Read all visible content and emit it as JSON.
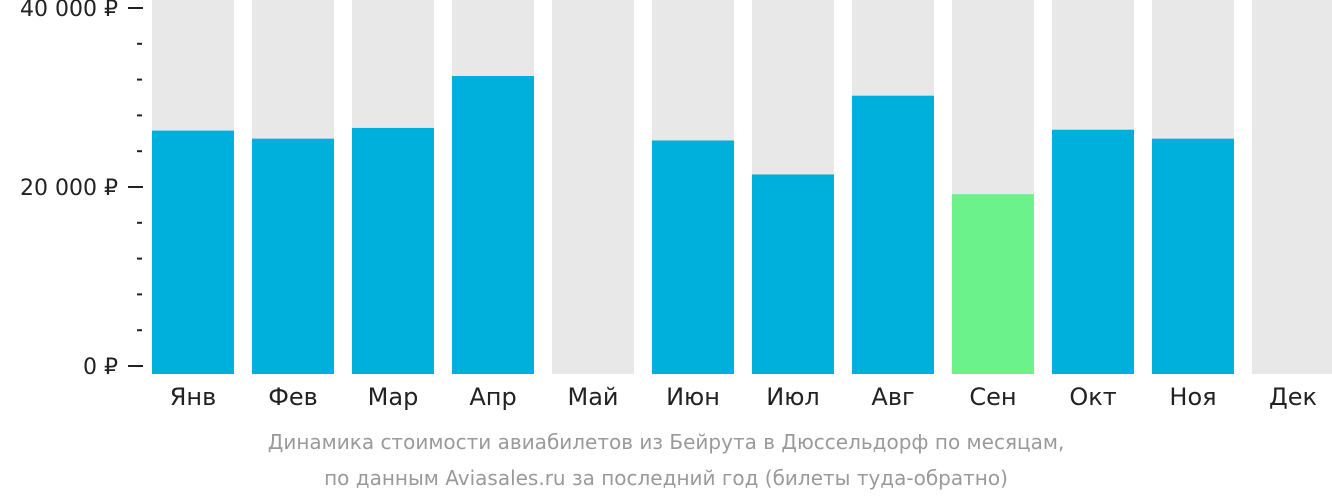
{
  "chart_data": {
    "type": "bar",
    "categories": [
      "Янв",
      "Фев",
      "Мар",
      "Апр",
      "Май",
      "Июн",
      "Июл",
      "Авг",
      "Сен",
      "Окт",
      "Ноя",
      "Дек"
    ],
    "values": [
      26300,
      25400,
      26600,
      32400,
      null,
      25200,
      21400,
      30200,
      19200,
      26400,
      25400,
      null
    ],
    "ylim": [
      0,
      40000
    ],
    "yticks": [
      0,
      20000,
      40000
    ],
    "ytick_labels": [
      "0 ₽",
      "20 000 ₽",
      "40 000 ₽"
    ],
    "minor_ticks_between_major": 4,
    "background_bar_color": "#e8e8e8",
    "bar_color": "#00b0dc",
    "min_bar_color": "#6cf28a",
    "min_category": "Сен",
    "grid": false,
    "legend": "none"
  },
  "caption": {
    "line1": "Динамика стоимости авиабилетов из Бейрута в Дюссельдорф по месяцам,",
    "line2": "по данным Aviasales.ru за последний год (билеты туда-обратно)"
  }
}
